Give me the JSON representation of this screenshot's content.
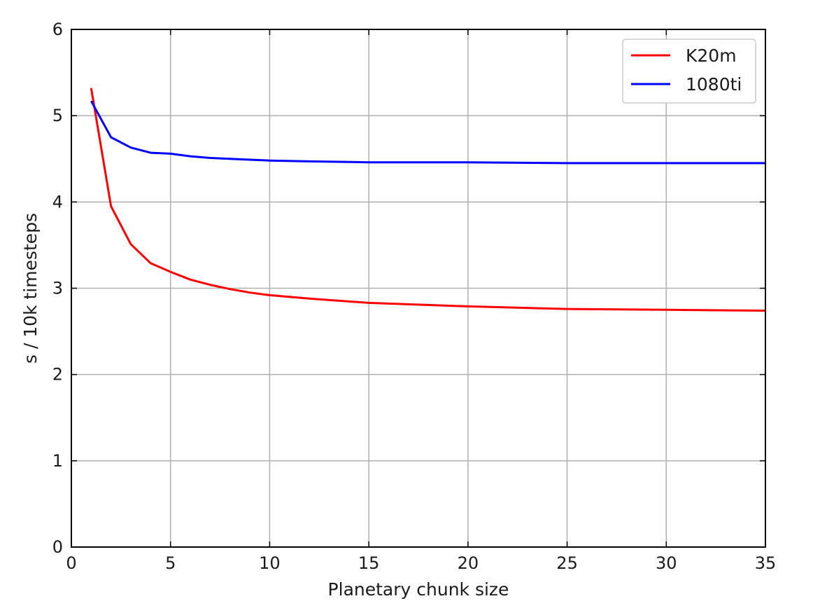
{
  "chart_data": {
    "type": "line",
    "title": "",
    "xlabel": "Planetary chunk size",
    "ylabel": "s / 10k timesteps",
    "xlim": [
      0,
      35
    ],
    "ylim": [
      0,
      6
    ],
    "xticks": [
      0,
      5,
      10,
      15,
      20,
      25,
      30,
      35
    ],
    "xtick_labels": [
      "0",
      "5",
      "10",
      "15",
      "20",
      "25",
      "30",
      "35"
    ],
    "yticks": [
      0,
      1,
      2,
      3,
      4,
      5,
      6
    ],
    "ytick_labels": [
      "0",
      "1",
      "2",
      "3",
      "4",
      "5",
      "6"
    ],
    "grid": true,
    "legend_position": "top-right",
    "series": [
      {
        "name": "K20m",
        "color": "#ff0000",
        "x": [
          1,
          2,
          3,
          4,
          5,
          6,
          7,
          8,
          9,
          10,
          12,
          15,
          20,
          25,
          30,
          35
        ],
        "y": [
          5.32,
          3.95,
          3.51,
          3.29,
          3.19,
          3.1,
          3.04,
          2.99,
          2.95,
          2.92,
          2.88,
          2.83,
          2.79,
          2.76,
          2.75,
          2.74
        ]
      },
      {
        "name": "1080ti",
        "color": "#0000ff",
        "x": [
          1,
          2,
          3,
          4,
          5,
          6,
          7,
          8,
          9,
          10,
          12,
          15,
          20,
          25,
          30,
          35
        ],
        "y": [
          5.17,
          4.75,
          4.63,
          4.57,
          4.56,
          4.53,
          4.51,
          4.5,
          4.49,
          4.48,
          4.47,
          4.46,
          4.46,
          4.45,
          4.45,
          4.45
        ]
      }
    ]
  }
}
